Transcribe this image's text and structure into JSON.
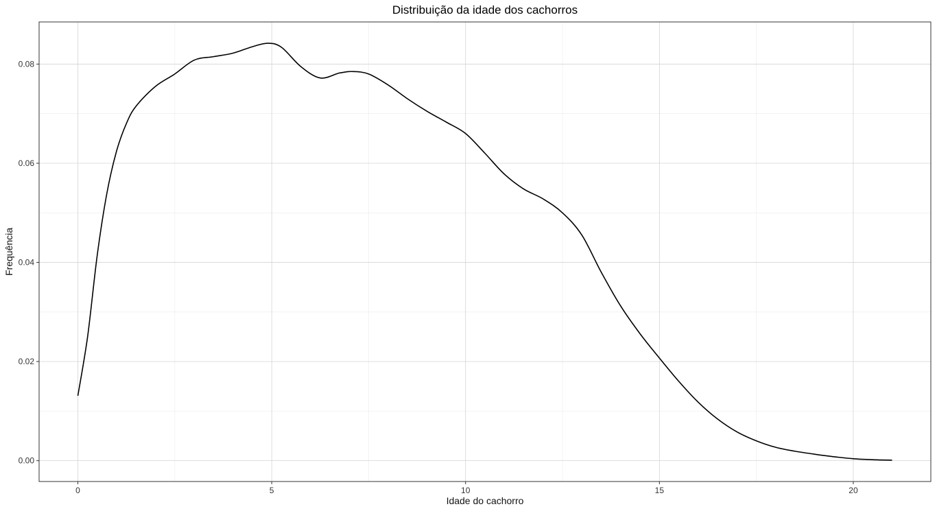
{
  "chart_data": {
    "type": "line",
    "title": "Distribuição da idade dos cachorros",
    "xlabel": "Idade do cachorro",
    "ylabel": "Frequência",
    "xlim": [
      -1,
      22
    ],
    "ylim": [
      -0.0042,
      0.0885
    ],
    "x_ticks": [
      0,
      5,
      10,
      15,
      20
    ],
    "x_tick_labels": [
      "0",
      "5",
      "10",
      "15",
      "20"
    ],
    "y_ticks": [
      0,
      0.02,
      0.04,
      0.06,
      0.08
    ],
    "y_tick_labels": [
      "0.00",
      "0.02",
      "0.04",
      "0.06",
      "0.08"
    ],
    "grid": true,
    "legend": "none",
    "series": [
      {
        "x": [
          0,
          0.25,
          0.5,
          0.75,
          1.0,
          1.25,
          1.5,
          2.0,
          2.5,
          3.0,
          3.5,
          4.0,
          4.5,
          4.9,
          5.25,
          5.75,
          6.25,
          6.75,
          7.1,
          7.5,
          8.0,
          8.5,
          9.0,
          9.5,
          10.0,
          10.5,
          11.0,
          11.5,
          12.0,
          12.5,
          13.0,
          13.5,
          14.0,
          14.5,
          15.0,
          15.5,
          16.0,
          16.5,
          17.0,
          17.5,
          18.0,
          18.5,
          19.0,
          19.5,
          20.0,
          20.5,
          21.0
        ],
        "y": [
          0.0131,
          0.025,
          0.0415,
          0.054,
          0.0625,
          0.068,
          0.0715,
          0.0755,
          0.078,
          0.0808,
          0.0815,
          0.0822,
          0.0835,
          0.0842,
          0.0834,
          0.0795,
          0.0772,
          0.0782,
          0.0785,
          0.078,
          0.0758,
          0.073,
          0.0705,
          0.0683,
          0.066,
          0.062,
          0.0578,
          0.0548,
          0.0528,
          0.05,
          0.0455,
          0.038,
          0.0312,
          0.0256,
          0.0207,
          0.016,
          0.0118,
          0.0084,
          0.0058,
          0.004,
          0.0027,
          0.0019,
          0.0013,
          0.0008,
          0.0004,
          0.0002,
          0.0001
        ]
      }
    ]
  }
}
